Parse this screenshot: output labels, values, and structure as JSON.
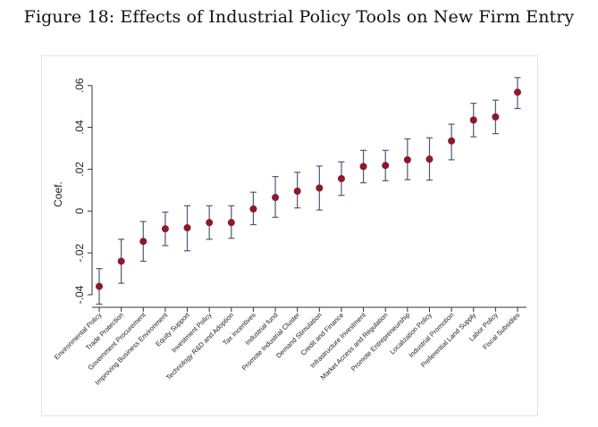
{
  "figure": {
    "title": "Figure 18: Effects of Industrial Policy Tools on New Firm Entry"
  },
  "chart_data": {
    "type": "scatter",
    "title": "Figure 18: Effects of Industrial Policy Tools on New Firm Entry",
    "xlabel": "",
    "ylabel": "Coef.",
    "ylim": [
      -0.046,
      0.068
    ],
    "yticks": [
      -0.04,
      -0.02,
      0,
      0.02,
      0.04,
      0.06
    ],
    "ytick_labels": [
      "-.04",
      "-.02",
      "0",
      ".02",
      ".04",
      ".06"
    ],
    "grid": false,
    "point_color": "#8b1a2b",
    "bar_color": "#4a5a78",
    "categories": [
      "Environmental Policy",
      "Trade Protection",
      "Government Procurement",
      "Improving Business Environment",
      "Equity Support",
      "Investment Policy",
      "Technology R&D and Adoption",
      "Tax Incentives",
      "Industrial fund",
      "Promote Industrial Cluster",
      "Demand Stimulation",
      "Credit and Finance",
      "Infrastructure Investment",
      "Market Access and Regulation",
      "Promote Entrepreneurship",
      "Localization Policy",
      "Industrial Promotion",
      "Preferential Land Supply",
      "Labor Policy",
      "Fiscal Subsidies"
    ],
    "series": [
      {
        "values": [
          -0.036,
          -0.024,
          -0.0145,
          -0.0085,
          -0.008,
          -0.0055,
          -0.0055,
          0.001,
          0.0065,
          0.0095,
          0.011,
          0.0155,
          0.0213,
          0.0218,
          0.0245,
          0.0248,
          0.0335,
          0.0435,
          0.045,
          0.0568
        ],
        "lower": [
          -0.0445,
          -0.0345,
          -0.024,
          -0.0165,
          -0.019,
          -0.0135,
          -0.013,
          -0.0065,
          -0.003,
          0.0015,
          0.0005,
          0.0075,
          0.0135,
          0.0145,
          0.015,
          0.0148,
          0.0245,
          0.0355,
          0.037,
          0.049
        ],
        "upper": [
          -0.0275,
          -0.0135,
          -0.005,
          -0.0005,
          0.0025,
          0.0025,
          0.0025,
          0.009,
          0.0165,
          0.0185,
          0.0215,
          0.0235,
          0.029,
          0.029,
          0.0345,
          0.035,
          0.0415,
          0.0515,
          0.053,
          0.0638
        ]
      }
    ]
  }
}
